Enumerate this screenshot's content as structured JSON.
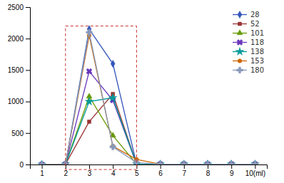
{
  "chart_data": {
    "type": "line",
    "x": [
      1,
      2,
      3,
      4,
      5,
      6,
      7,
      8,
      9,
      10
    ],
    "series": [
      {
        "name": "28",
        "color": "#3355bb",
        "marker": "diamond",
        "values": [
          0,
          5,
          2150,
          1600,
          5,
          5,
          5,
          5,
          5,
          5
        ]
      },
      {
        "name": "52",
        "color": "#993333",
        "marker": "square",
        "values": [
          0,
          5,
          680,
          1120,
          5,
          5,
          5,
          5,
          5,
          5
        ]
      },
      {
        "name": "101",
        "color": "#669900",
        "marker": "triangle",
        "values": [
          0,
          5,
          1080,
          460,
          5,
          5,
          5,
          5,
          5,
          5
        ]
      },
      {
        "name": "118",
        "color": "#6633bb",
        "marker": "x",
        "values": [
          0,
          5,
          1480,
          1020,
          5,
          5,
          5,
          5,
          5,
          5
        ]
      },
      {
        "name": "138",
        "color": "#009999",
        "marker": "star",
        "values": [
          0,
          5,
          1000,
          1060,
          5,
          5,
          5,
          5,
          5,
          5
        ]
      },
      {
        "name": "153",
        "color": "#cc6600",
        "marker": "circle",
        "values": [
          0,
          5,
          2050,
          290,
          80,
          5,
          5,
          5,
          5,
          5
        ]
      },
      {
        "name": "180",
        "color": "#8899bb",
        "marker": "plus",
        "values": [
          0,
          5,
          2100,
          280,
          30,
          5,
          5,
          5,
          5,
          5
        ]
      }
    ],
    "xlim": [
      0.5,
      10.5
    ],
    "xticks": [
      1,
      2,
      3,
      4,
      5,
      6,
      7,
      8,
      9,
      {
        "value": 10,
        "label": "10(ml)"
      }
    ],
    "ylim": [
      0,
      2500
    ],
    "yticks": [
      0,
      500,
      1000,
      1500,
      2000,
      2500
    ],
    "grid": false,
    "legend": "upper right",
    "highlight": {
      "x": [
        2,
        5
      ],
      "y": [
        -80,
        2200
      ],
      "color": "#cc3333",
      "line_style": "dashed"
    }
  }
}
